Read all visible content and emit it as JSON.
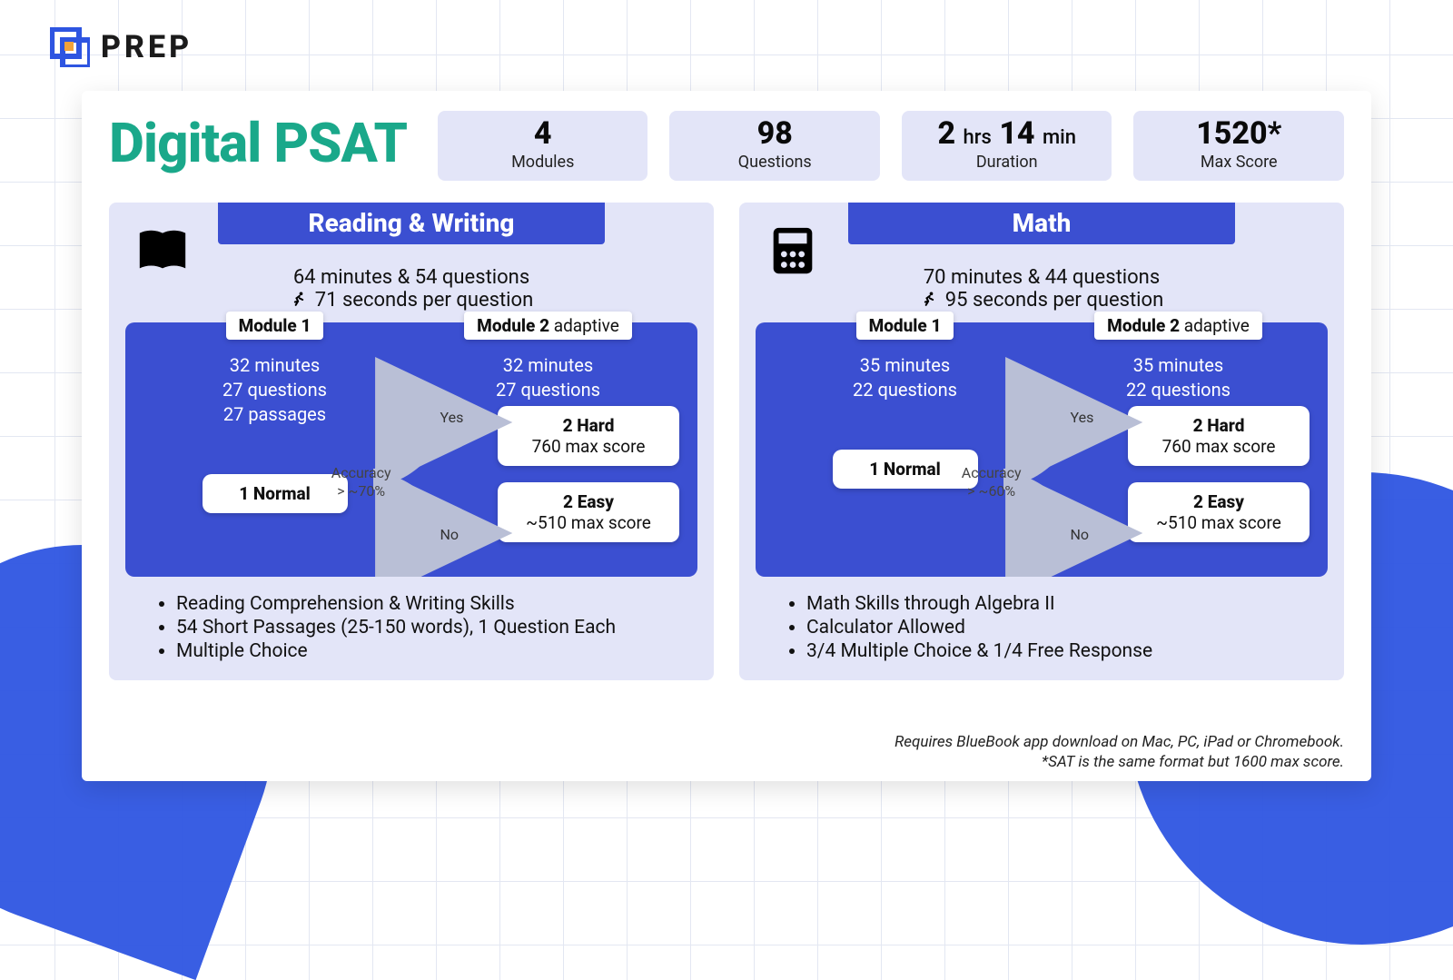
{
  "brand": {
    "name": "PREP"
  },
  "title": "Digital PSAT",
  "colors": {
    "accent_teal": "#1aa88a",
    "panel_lavender": "#e3e5f8",
    "module_blue": "#3b4fd1",
    "corner_blue": "#2e55e1",
    "grid_line": "#e3e7f2",
    "text": "#111111",
    "white": "#ffffff"
  },
  "header_stats": [
    {
      "value_html": "4",
      "label": "Modules"
    },
    {
      "value_html": "98",
      "label": "Questions"
    },
    {
      "value_prefix": "2",
      "unit1": "hrs",
      "value_mid": "14",
      "unit2": "min",
      "label": "Duration"
    },
    {
      "value_html": "1520*",
      "label": "Max Score"
    }
  ],
  "sections": [
    {
      "key": "rw",
      "heading": "Reading & Writing",
      "icon": "book",
      "summary_line1": "64 minutes & 54 questions",
      "summary_line2": "71 seconds per question",
      "mod1": {
        "label_bold": "Module 1",
        "lines": [
          "32 minutes",
          "27 questions",
          "27 passages"
        ],
        "pill": "1 Normal"
      },
      "accuracy": "Accuracy\n> ~70%",
      "yes": "Yes",
      "no": "No",
      "mod2": {
        "label_bold": "Module 2",
        "label_extra": "adaptive",
        "lines": [
          "32 minutes",
          "27 questions"
        ],
        "hard": {
          "title": "2 Hard",
          "sub": "760 max score"
        },
        "easy": {
          "title": "2 Easy",
          "sub": "~510 max score"
        }
      },
      "bullets": [
        "Reading Comprehension & Writing Skills",
        "54 Short Passages (25-150 words), 1 Question Each",
        "Multiple Choice"
      ]
    },
    {
      "key": "math",
      "heading": "Math",
      "icon": "calculator",
      "summary_line1": "70 minutes & 44 questions",
      "summary_line2": "95 seconds per question",
      "mod1": {
        "label_bold": "Module 1",
        "lines": [
          "35 minutes",
          "22 questions"
        ],
        "pill": "1 Normal"
      },
      "accuracy": "Accuracy\n> ~60%",
      "yes": "Yes",
      "no": "No",
      "mod2": {
        "label_bold": "Module 2",
        "label_extra": "adaptive",
        "lines": [
          "35 minutes",
          "22 questions"
        ],
        "hard": {
          "title": "2 Hard",
          "sub": "760 max score"
        },
        "easy": {
          "title": "2 Easy",
          "sub": "~510 max score"
        }
      },
      "bullets": [
        "Math Skills through Algebra II",
        "Calculator Allowed",
        "3/4 Multiple Choice & 1/4 Free Response"
      ]
    }
  ],
  "footnotes": [
    "Requires BlueBook app download on Mac, PC, iPad or Chromebook.",
    "*SAT is the same format but 1600 max score."
  ]
}
